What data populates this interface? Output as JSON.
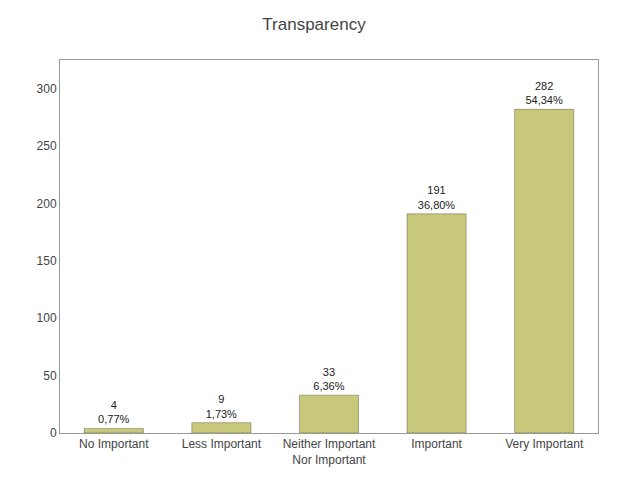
{
  "chart_data": {
    "type": "bar",
    "title": "Transparency",
    "categories": [
      "No Important",
      "Less Important",
      "Neither Important\nNor Important",
      "Important",
      "Very Important"
    ],
    "values": [
      4,
      9,
      33,
      191,
      282
    ],
    "value_labels": [
      "4\n0,77%",
      "9\n1,73%",
      "33\n6,36%",
      "191\n36,80%",
      "282\n54,34%"
    ],
    "data_labels": true,
    "color": "#C8C87A",
    "ylim": [
      0,
      325
    ],
    "yticks": [
      0,
      50,
      100,
      150,
      200,
      250,
      300
    ],
    "grid": false
  }
}
